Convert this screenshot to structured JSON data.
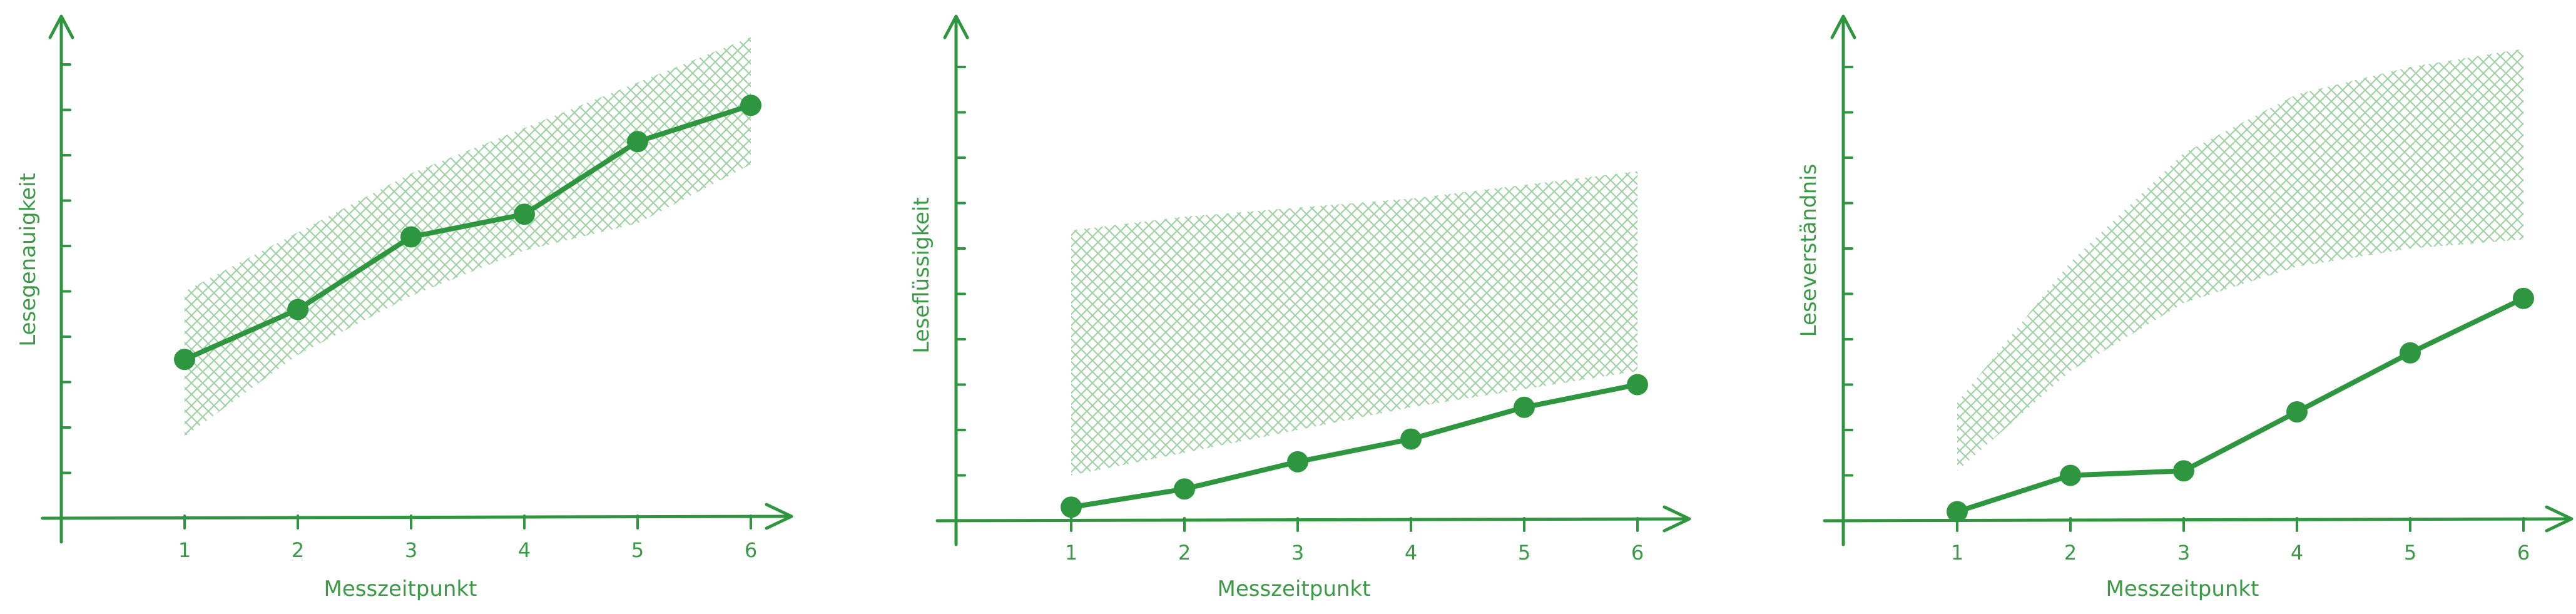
{
  "colors": {
    "main": "#2f9640",
    "band": "#9fd3a6"
  },
  "chart_data": [
    {
      "type": "line",
      "xlabel": "Messzeitpunkt",
      "ylabel": "Lesegenauigkeit",
      "x": [
        1,
        2,
        3,
        4,
        5,
        6
      ],
      "values": [
        3.5,
        4.6,
        6.2,
        6.7,
        8.3,
        9.1
      ],
      "band": {
        "lower": [
          1.8,
          3.6,
          4.9,
          5.9,
          6.5,
          7.8
        ],
        "upper": [
          5.0,
          6.3,
          7.6,
          8.6,
          9.6,
          10.6
        ]
      },
      "xticks": [
        "1",
        "2",
        "3",
        "4",
        "5",
        "6"
      ],
      "ylim": [
        0,
        10
      ],
      "yticks": 10,
      "grid": false,
      "legend": "none"
    },
    {
      "type": "line",
      "xlabel": "Messzeitpunkt",
      "ylabel": "Leseflüssigkeit",
      "x": [
        1,
        2,
        3,
        4,
        5,
        6
      ],
      "values": [
        0.3,
        0.7,
        1.3,
        1.8,
        2.5,
        3.0
      ],
      "band": {
        "lower": [
          1.0,
          1.5,
          2.0,
          2.5,
          2.9,
          3.3
        ],
        "upper": [
          6.4,
          6.7,
          6.9,
          7.1,
          7.4,
          7.7
        ]
      },
      "xticks": [
        "1",
        "2",
        "3",
        "4",
        "5",
        "6"
      ],
      "ylim": [
        0,
        10
      ],
      "yticks": 10,
      "grid": false,
      "legend": "none"
    },
    {
      "type": "line",
      "xlabel": "Messzeitpunkt",
      "ylabel": "Leseverständnis",
      "x": [
        1,
        2,
        3,
        4,
        5,
        6
      ],
      "values": [
        0.2,
        1.0,
        1.1,
        2.4,
        3.7,
        4.9
      ],
      "band": {
        "lower": [
          1.1,
          3.3,
          4.8,
          5.6,
          6.0,
          6.2
        ],
        "upper": [
          2.6,
          5.7,
          8.1,
          9.4,
          10.0,
          10.4
        ]
      },
      "xticks": [
        "1",
        "2",
        "3",
        "4",
        "5",
        "6"
      ],
      "ylim": [
        0,
        10
      ],
      "yticks": 10,
      "grid": false,
      "legend": "none"
    }
  ]
}
